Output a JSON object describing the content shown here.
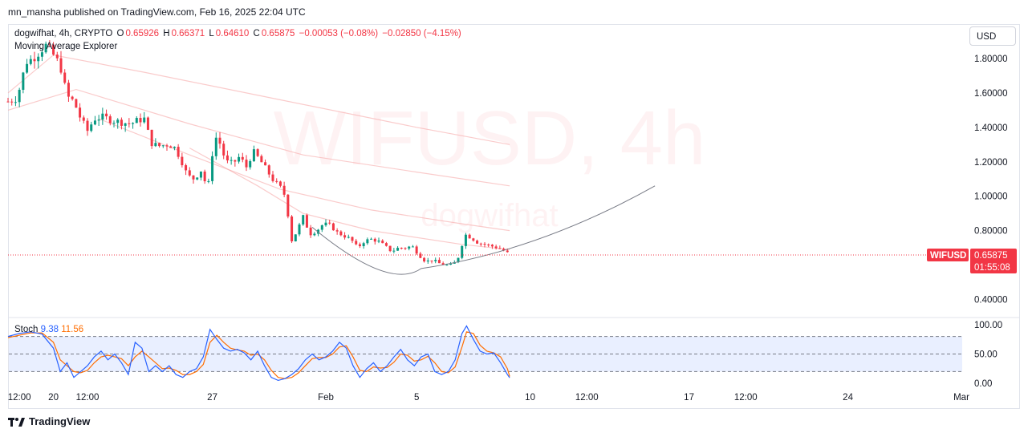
{
  "header": {
    "published": "mn_mansha published on TradingView.com, Feb 16, 2025 22:04 UTC",
    "currency_button": "USD",
    "symbol": "dogwifhat, 4h, CRYPTO",
    "o_label": "O",
    "o_value": "0.65926",
    "h_label": "H",
    "h_value": "0.66371",
    "l_label": "L",
    "l_value": "0.64610",
    "c_label": "C",
    "c_value": "0.65875",
    "change": "−0.00053 (−0.08%)",
    "change2": "−0.02850 (−4.15%)",
    "indicator": "Moving Average Explorer"
  },
  "watermark": {
    "ticker": "WIFUSD, 4h",
    "name": "dogwifhat"
  },
  "price_tag": {
    "symbol": "WIFUSD",
    "price": "0.65875",
    "countdown": "01:55:08"
  },
  "stoch": {
    "label": "Stoch",
    "k_value": "9.38",
    "d_value": "11.56"
  },
  "footer": {
    "brand": "TradingView"
  },
  "colors": {
    "up": "#089981",
    "down": "#f23645",
    "stoch_k": "#2962ff",
    "stoch_d": "#ff6d00",
    "ma": "#f7a8a8",
    "curve": "#787b86"
  },
  "chart_data": [
    {
      "type": "candlestick",
      "ylim": [
        0.3,
        2.0
      ],
      "yticks": [
        "1.80000",
        "1.60000",
        "1.40000",
        "1.20000",
        "1.00000",
        "0.80000",
        "0.40000"
      ],
      "ytick_values": [
        1.8,
        1.6,
        1.4,
        1.2,
        1.0,
        0.8,
        0.4
      ],
      "xticks": [
        "12:00",
        "20",
        "12:00",
        "27",
        "Feb",
        "5",
        "10",
        "12:00",
        "17",
        "12:00",
        "24",
        "Mar"
      ],
      "xtick_days": [
        18.5,
        20,
        21.5,
        27,
        32,
        36,
        41,
        43.5,
        48,
        50.5,
        55,
        60
      ],
      "x_range_days": [
        18,
        60
      ],
      "last_price": 0.65875,
      "close_path": [
        [
          18.0,
          1.55
        ],
        [
          18.4,
          1.57
        ],
        [
          18.8,
          1.78
        ],
        [
          19.1,
          1.8
        ],
        [
          19.4,
          1.84
        ],
        [
          19.7,
          1.88
        ],
        [
          20.0,
          1.82
        ],
        [
          20.3,
          1.76
        ],
        [
          20.6,
          1.58
        ],
        [
          20.9,
          1.55
        ],
        [
          21.2,
          1.45
        ],
        [
          21.5,
          1.38
        ],
        [
          21.8,
          1.45
        ],
        [
          22.2,
          1.46
        ],
        [
          22.6,
          1.44
        ],
        [
          23.0,
          1.43
        ],
        [
          23.4,
          1.42
        ],
        [
          23.7,
          1.44
        ],
        [
          24.0,
          1.45
        ],
        [
          24.3,
          1.31
        ],
        [
          24.6,
          1.29
        ],
        [
          25.0,
          1.3
        ],
        [
          25.3,
          1.29
        ],
        [
          25.6,
          1.22
        ],
        [
          25.9,
          1.12
        ],
        [
          26.2,
          1.1
        ],
        [
          26.5,
          1.15
        ],
        [
          26.8,
          1.04
        ],
        [
          27.1,
          1.35
        ],
        [
          27.3,
          1.32
        ],
        [
          27.6,
          1.2
        ],
        [
          27.9,
          1.19
        ],
        [
          28.2,
          1.23
        ],
        [
          28.5,
          1.17
        ],
        [
          28.8,
          1.26
        ],
        [
          29.1,
          1.21
        ],
        [
          29.4,
          1.15
        ],
        [
          29.7,
          1.09
        ],
        [
          30.0,
          1.05
        ],
        [
          30.3,
          0.98
        ],
        [
          30.4,
          0.72
        ],
        [
          30.7,
          0.79
        ],
        [
          31.0,
          0.88
        ],
        [
          31.3,
          0.78
        ],
        [
          31.6,
          0.8
        ],
        [
          31.9,
          0.84
        ],
        [
          32.2,
          0.83
        ],
        [
          32.5,
          0.79
        ],
        [
          32.8,
          0.77
        ],
        [
          33.1,
          0.75
        ],
        [
          33.4,
          0.7
        ],
        [
          33.7,
          0.74
        ],
        [
          34.0,
          0.75
        ],
        [
          34.3,
          0.74
        ],
        [
          34.6,
          0.71
        ],
        [
          34.9,
          0.68
        ],
        [
          35.2,
          0.7
        ],
        [
          35.5,
          0.7
        ],
        [
          35.8,
          0.71
        ],
        [
          36.1,
          0.66
        ],
        [
          36.4,
          0.62
        ],
        [
          36.7,
          0.63
        ],
        [
          37.0,
          0.61
        ],
        [
          37.3,
          0.6
        ],
        [
          37.6,
          0.6
        ],
        [
          37.9,
          0.66
        ],
        [
          38.1,
          0.78
        ],
        [
          38.4,
          0.76
        ],
        [
          38.7,
          0.73
        ],
        [
          39.0,
          0.72
        ],
        [
          39.3,
          0.71
        ],
        [
          39.6,
          0.7
        ],
        [
          39.9,
          0.68
        ],
        [
          40.1,
          0.66
        ]
      ]
    },
    {
      "type": "line",
      "title": "Stoch",
      "ylim": [
        0,
        100
      ],
      "yticks": [
        "100.00",
        "50.00",
        "0.00"
      ],
      "ytick_values": [
        100,
        50,
        0
      ],
      "bands": [
        20,
        50,
        80
      ],
      "series": [
        {
          "name": "%K",
          "value": 9.38
        },
        {
          "name": "%D",
          "value": 11.56
        }
      ],
      "k_path": [
        [
          18.0,
          80
        ],
        [
          18.5,
          85
        ],
        [
          19.0,
          88
        ],
        [
          19.5,
          84
        ],
        [
          20.0,
          60
        ],
        [
          20.3,
          20
        ],
        [
          20.6,
          35
        ],
        [
          20.9,
          10
        ],
        [
          21.2,
          20
        ],
        [
          21.5,
          30
        ],
        [
          21.8,
          45
        ],
        [
          22.1,
          55
        ],
        [
          22.4,
          40
        ],
        [
          22.7,
          50
        ],
        [
          23.0,
          35
        ],
        [
          23.3,
          15
        ],
        [
          23.6,
          70
        ],
        [
          23.9,
          60
        ],
        [
          24.2,
          20
        ],
        [
          24.5,
          30
        ],
        [
          24.8,
          20
        ],
        [
          25.1,
          30
        ],
        [
          25.4,
          15
        ],
        [
          25.7,
          10
        ],
        [
          26.0,
          20
        ],
        [
          26.3,
          25
        ],
        [
          26.6,
          45
        ],
        [
          26.9,
          92
        ],
        [
          27.2,
          75
        ],
        [
          27.5,
          60
        ],
        [
          27.8,
          55
        ],
        [
          28.1,
          58
        ],
        [
          28.4,
          52
        ],
        [
          28.7,
          40
        ],
        [
          29.0,
          55
        ],
        [
          29.3,
          30
        ],
        [
          29.6,
          10
        ],
        [
          29.9,
          5
        ],
        [
          30.2,
          8
        ],
        [
          30.5,
          15
        ],
        [
          30.8,
          25
        ],
        [
          31.1,
          40
        ],
        [
          31.4,
          50
        ],
        [
          31.7,
          40
        ],
        [
          32.0,
          45
        ],
        [
          32.3,
          55
        ],
        [
          32.6,
          70
        ],
        [
          32.9,
          60
        ],
        [
          33.2,
          30
        ],
        [
          33.5,
          10
        ],
        [
          33.8,
          25
        ],
        [
          34.1,
          35
        ],
        [
          34.4,
          20
        ],
        [
          34.7,
          30
        ],
        [
          35.0,
          45
        ],
        [
          35.3,
          58
        ],
        [
          35.6,
          40
        ],
        [
          35.9,
          30
        ],
        [
          36.2,
          45
        ],
        [
          36.5,
          50
        ],
        [
          36.8,
          20
        ],
        [
          37.1,
          15
        ],
        [
          37.4,
          20
        ],
        [
          37.7,
          40
        ],
        [
          38.0,
          85
        ],
        [
          38.2,
          98
        ],
        [
          38.5,
          75
        ],
        [
          38.8,
          55
        ],
        [
          39.1,
          50
        ],
        [
          39.4,
          52
        ],
        [
          39.7,
          35
        ],
        [
          40.0,
          15
        ],
        [
          40.1,
          9.38
        ]
      ],
      "d_path": [
        [
          18.0,
          78
        ],
        [
          18.5,
          82
        ],
        [
          19.0,
          86
        ],
        [
          19.5,
          86
        ],
        [
          20.0,
          70
        ],
        [
          20.3,
          40
        ],
        [
          20.6,
          30
        ],
        [
          20.9,
          20
        ],
        [
          21.2,
          18
        ],
        [
          21.5,
          22
        ],
        [
          21.8,
          35
        ],
        [
          22.1,
          45
        ],
        [
          22.4,
          48
        ],
        [
          22.7,
          45
        ],
        [
          23.0,
          42
        ],
        [
          23.3,
          30
        ],
        [
          23.6,
          45
        ],
        [
          23.9,
          55
        ],
        [
          24.2,
          45
        ],
        [
          24.5,
          35
        ],
        [
          24.8,
          25
        ],
        [
          25.1,
          26
        ],
        [
          25.4,
          22
        ],
        [
          25.7,
          15
        ],
        [
          26.0,
          15
        ],
        [
          26.3,
          20
        ],
        [
          26.6,
          32
        ],
        [
          26.9,
          70
        ],
        [
          27.2,
          82
        ],
        [
          27.5,
          70
        ],
        [
          27.8,
          60
        ],
        [
          28.1,
          57
        ],
        [
          28.4,
          55
        ],
        [
          28.7,
          48
        ],
        [
          29.0,
          50
        ],
        [
          29.3,
          40
        ],
        [
          29.6,
          22
        ],
        [
          29.9,
          10
        ],
        [
          30.2,
          8
        ],
        [
          30.5,
          10
        ],
        [
          30.8,
          18
        ],
        [
          31.1,
          30
        ],
        [
          31.4,
          42
        ],
        [
          31.7,
          44
        ],
        [
          32.0,
          44
        ],
        [
          32.3,
          50
        ],
        [
          32.6,
          62
        ],
        [
          32.9,
          64
        ],
        [
          33.2,
          45
        ],
        [
          33.5,
          22
        ],
        [
          33.8,
          20
        ],
        [
          34.1,
          28
        ],
        [
          34.4,
          26
        ],
        [
          34.7,
          27
        ],
        [
          35.0,
          36
        ],
        [
          35.3,
          50
        ],
        [
          35.6,
          48
        ],
        [
          35.9,
          38
        ],
        [
          36.2,
          40
        ],
        [
          36.5,
          46
        ],
        [
          36.8,
          35
        ],
        [
          37.1,
          20
        ],
        [
          37.4,
          18
        ],
        [
          37.7,
          28
        ],
        [
          38.0,
          62
        ],
        [
          38.2,
          88
        ],
        [
          38.5,
          85
        ],
        [
          38.8,
          65
        ],
        [
          39.1,
          55
        ],
        [
          39.4,
          52
        ],
        [
          39.7,
          45
        ],
        [
          40.0,
          25
        ],
        [
          40.1,
          11.56
        ]
      ]
    }
  ]
}
